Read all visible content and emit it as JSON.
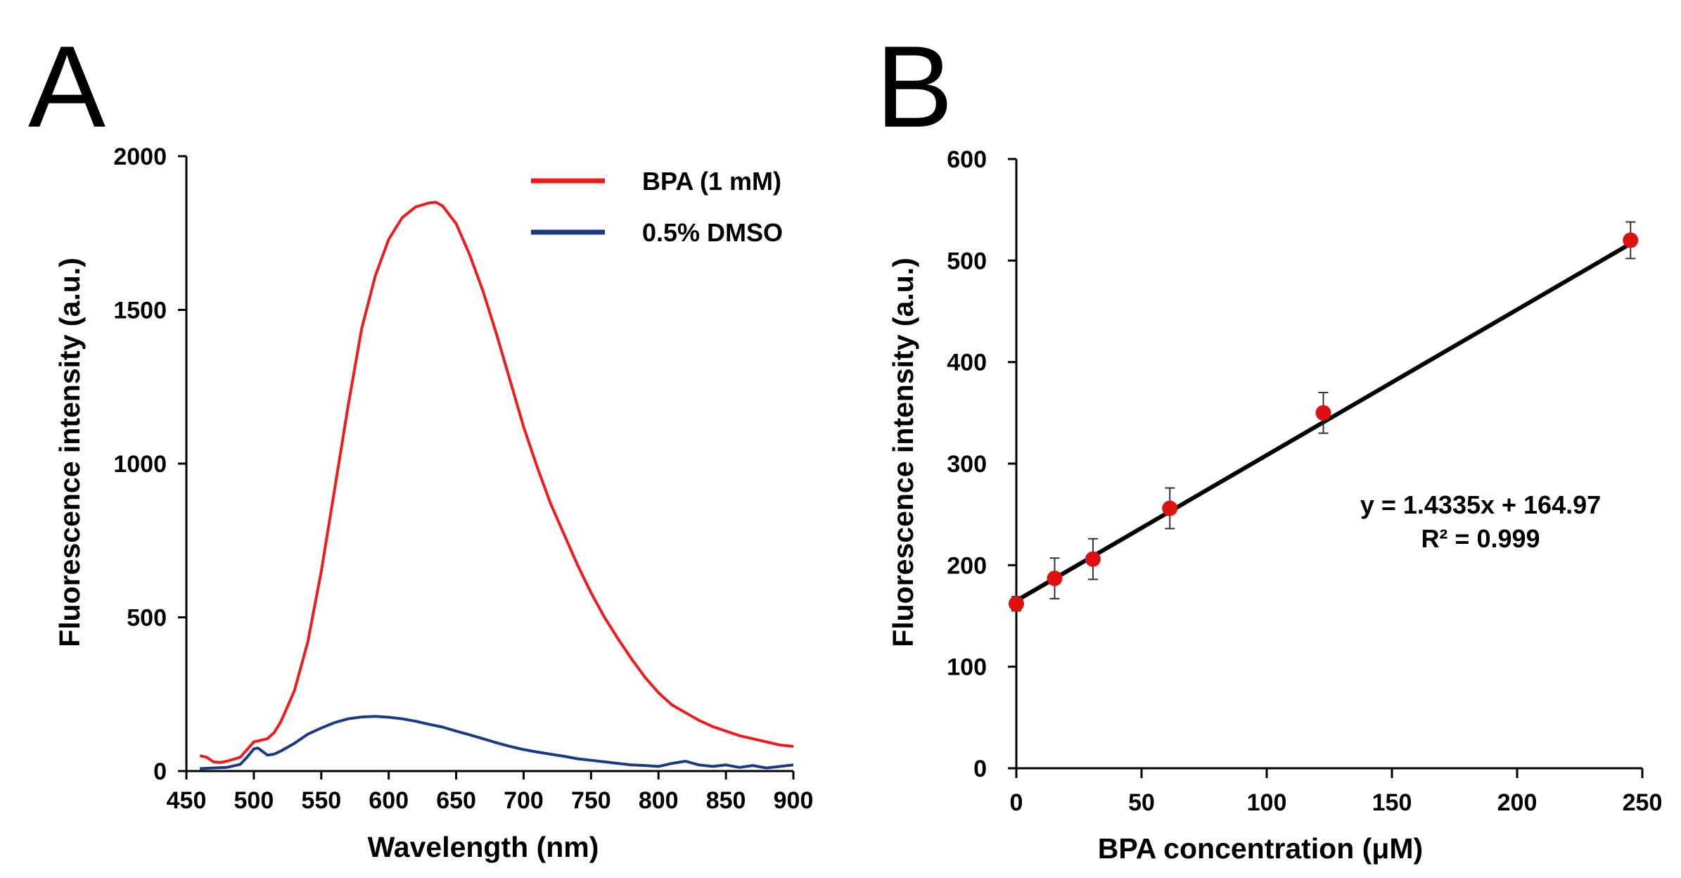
{
  "chart_data": [
    {
      "panel": "A",
      "type": "line",
      "title": "",
      "xlabel": "Wavelength (nm)",
      "ylabel": "Fluorescence intensity (a.u.)",
      "xlim": [
        450,
        900
      ],
      "ylim": [
        0,
        2000
      ],
      "xticks": [
        450,
        500,
        550,
        600,
        650,
        700,
        750,
        800,
        850,
        900
      ],
      "yticks": [
        0,
        500,
        1000,
        1500,
        2000
      ],
      "xtick_labels": [
        "450",
        "500",
        "550",
        "600",
        "650",
        "700",
        "750",
        "800",
        "850",
        "900"
      ],
      "ytick_labels": [
        "0",
        "500",
        "1000",
        "1500",
        "2000"
      ],
      "grid": false,
      "legend_position": "top-right",
      "series": [
        {
          "name": "BPA (1 mM)",
          "color": "#ee1c1c",
          "x": [
            460,
            465,
            470,
            475,
            480,
            490,
            495,
            500,
            505,
            510,
            515,
            520,
            530,
            540,
            550,
            560,
            570,
            580,
            590,
            600,
            610,
            620,
            630,
            635,
            640,
            650,
            660,
            670,
            680,
            690,
            700,
            710,
            720,
            730,
            740,
            750,
            760,
            770,
            780,
            790,
            800,
            810,
            820,
            830,
            840,
            850,
            860,
            870,
            880,
            890,
            900
          ],
          "values": [
            50,
            45,
            30,
            28,
            32,
            45,
            70,
            95,
            100,
            105,
            125,
            160,
            260,
            420,
            650,
            920,
            1190,
            1440,
            1610,
            1730,
            1800,
            1835,
            1848,
            1850,
            1838,
            1780,
            1680,
            1560,
            1420,
            1270,
            1120,
            990,
            870,
            770,
            670,
            580,
            500,
            430,
            365,
            305,
            255,
            215,
            190,
            165,
            145,
            130,
            115,
            105,
            95,
            85,
            80
          ]
        },
        {
          "name": "0.5% DMSO",
          "color": "#1b3a84",
          "x": [
            460,
            470,
            480,
            490,
            495,
            500,
            503,
            507,
            510,
            515,
            520,
            530,
            540,
            550,
            560,
            570,
            580,
            590,
            600,
            610,
            620,
            630,
            640,
            650,
            660,
            670,
            680,
            690,
            700,
            710,
            720,
            730,
            740,
            750,
            760,
            770,
            780,
            790,
            800,
            810,
            820,
            830,
            840,
            850,
            860,
            870,
            880,
            890,
            900
          ],
          "values": [
            8,
            10,
            12,
            22,
            45,
            72,
            75,
            62,
            52,
            55,
            65,
            90,
            120,
            140,
            158,
            170,
            176,
            178,
            175,
            170,
            162,
            152,
            143,
            130,
            118,
            105,
            92,
            80,
            70,
            62,
            55,
            48,
            40,
            35,
            30,
            25,
            20,
            18,
            15,
            25,
            32,
            20,
            15,
            20,
            12,
            18,
            10,
            15,
            20
          ]
        }
      ]
    },
    {
      "panel": "B",
      "type": "scatter",
      "title": "",
      "xlabel": "BPA concentration (μM)",
      "ylabel": "Fluorescence intensity (a.u.)",
      "xlim": [
        0,
        250
      ],
      "ylim": [
        0,
        600
      ],
      "xticks": [
        0,
        50,
        100,
        150,
        200,
        250
      ],
      "yticks": [
        0,
        100,
        200,
        300,
        400,
        500,
        600
      ],
      "xtick_labels": [
        "0",
        "50",
        "100",
        "150",
        "200",
        "250"
      ],
      "ytick_labels": [
        "0",
        "100",
        "200",
        "300",
        "400",
        "500",
        "600"
      ],
      "grid": false,
      "point_color": "#dd1111",
      "line_color": "#000000",
      "points": {
        "x": [
          0,
          15.3,
          30.6,
          61.3,
          122.6,
          245.3
        ],
        "y": [
          162,
          187,
          206,
          256,
          350,
          520
        ],
        "error": [
          7,
          20,
          20,
          20,
          20,
          18
        ]
      },
      "fit": {
        "slope": 1.4335,
        "intercept": 164.97,
        "x_range": [
          0,
          245.3
        ]
      },
      "annotations": {
        "equation": "y = 1.4335x + 164.97",
        "r_squared": "R² = 0.999"
      }
    }
  ],
  "panels": {
    "a_letter": "A",
    "b_letter": "B"
  }
}
